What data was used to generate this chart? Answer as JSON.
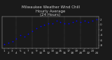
{
  "title": "Milwaukee Weather Wind Chill\nHourly Average\n(24 Hours)",
  "title_fontsize": 4.0,
  "background_color": "#1a1a1a",
  "plot_bg_color": "#1a1a1a",
  "grid_color": "#888888",
  "dot_color": "#0000ff",
  "dot_size": 1.5,
  "hours": [
    1,
    2,
    3,
    4,
    5,
    6,
    7,
    8,
    9,
    10,
    11,
    12,
    13,
    14,
    15,
    16,
    17,
    18,
    19,
    20,
    21,
    22,
    23,
    24
  ],
  "values": [
    -7.5,
    -7.0,
    -6.5,
    -5.5,
    -4.0,
    -4.5,
    -3.5,
    -2.5,
    -1.5,
    -0.5,
    0.0,
    0.5,
    0.5,
    1.5,
    1.0,
    0.5,
    0.5,
    1.0,
    1.5,
    1.0,
    1.5,
    1.0,
    1.5,
    2.0
  ],
  "ylim": [
    -9,
    3
  ],
  "xlim": [
    0.5,
    24.5
  ],
  "yticks": [
    -8,
    -6,
    -4,
    -2,
    0,
    2
  ],
  "ytick_labels": [
    "-8",
    "-6",
    "-4",
    "-2",
    "0",
    "2"
  ],
  "xtick_row1": [
    "1",
    "",
    "3",
    "",
    "5",
    "",
    "7",
    "",
    "9",
    "",
    "11",
    "",
    "13",
    "",
    "15",
    "",
    "17",
    "",
    "19",
    "",
    "21",
    "",
    "23",
    ""
  ],
  "xtick_row2": [
    "",
    "2",
    "",
    "4",
    "",
    "6",
    "",
    "8",
    "",
    "10",
    "",
    "12",
    "",
    "14",
    "",
    "16",
    "",
    "18",
    "",
    "20",
    "",
    "22",
    "",
    "24"
  ],
  "tick_fontsize": 3.0,
  "text_color": "#cccccc",
  "vgrid_positions": [
    4,
    8,
    12,
    16,
    20,
    24
  ],
  "ylabel_fontsize": 3.0
}
